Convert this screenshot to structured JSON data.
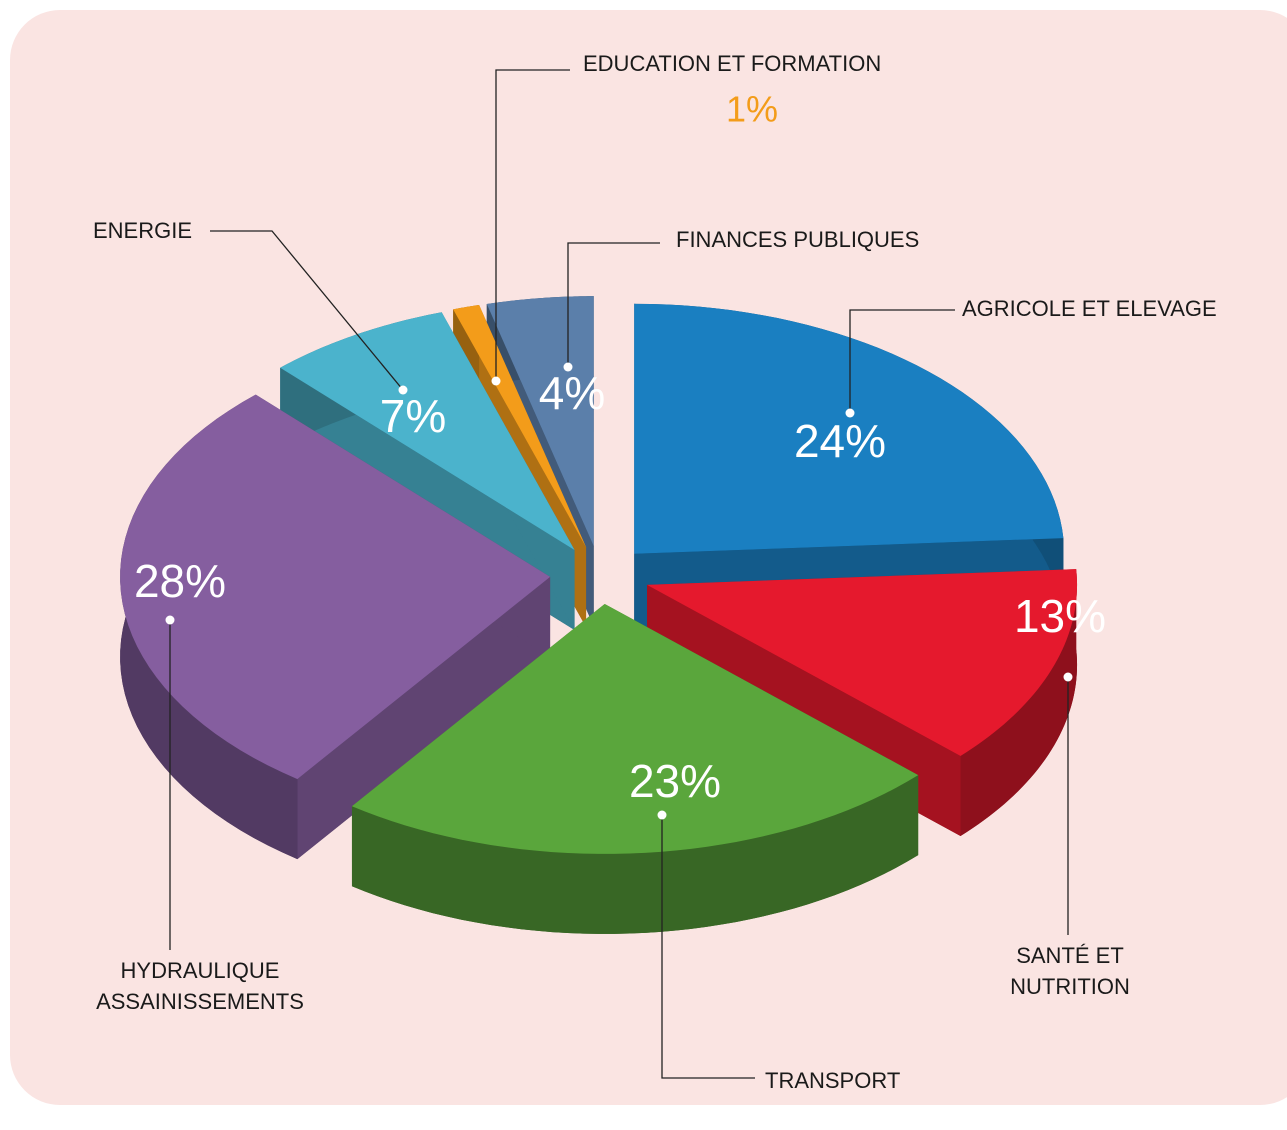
{
  "chart_data": {
    "type": "pie3d",
    "categories": [
      "AGRICOLE ET ELEVAGE",
      "SANTÉ ET NUTRITION",
      "TRANSPORT",
      "HYDRAULIQUE ASSAINISSEMENTS",
      "ENERGIE",
      "EDUCATION ET FORMATION",
      "FINANCES PUBLIQUES"
    ],
    "values": [
      24,
      13,
      23,
      28,
      7,
      1,
      4
    ],
    "value_labels": [
      "24%",
      "13%",
      "23%",
      "28%",
      "7%",
      "1%",
      "4%"
    ],
    "colors": [
      "#1a7fc1",
      "#e5192d",
      "#5aa63c",
      "#855e9f",
      "#4bb3cc",
      "#f39c1a",
      "#5b7faa"
    ]
  }
}
